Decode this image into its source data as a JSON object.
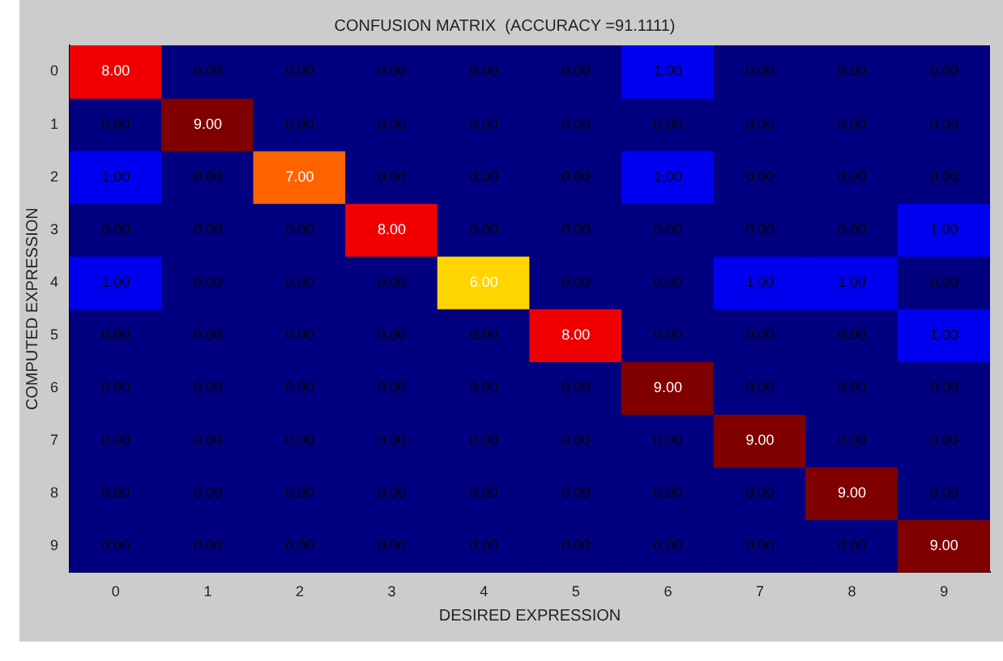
{
  "chart_data": {
    "type": "heatmap",
    "title": "CONFUSION MATRIX  (ACCURACY =91.1111)",
    "xlabel": "DESIRED EXPRESSION",
    "ylabel": "COMPUTED EXPRESSION",
    "categories": [
      "0",
      "1",
      "2",
      "3",
      "4",
      "5",
      "6",
      "7",
      "8",
      "9"
    ],
    "y_categories": [
      "0",
      "1",
      "2",
      "3",
      "4",
      "5",
      "6",
      "7",
      "8",
      "9"
    ],
    "cells": [
      [
        8,
        0,
        0,
        0,
        0,
        0,
        1,
        0,
        0,
        0
      ],
      [
        0,
        9,
        0,
        0,
        0,
        0,
        0,
        0,
        0,
        0
      ],
      [
        1,
        0,
        7,
        0,
        0,
        0,
        1,
        0,
        0,
        0
      ],
      [
        0,
        0,
        0,
        8,
        0,
        0,
        0,
        0,
        0,
        1
      ],
      [
        1,
        0,
        0,
        0,
        6,
        0,
        0,
        1,
        1,
        0
      ],
      [
        0,
        0,
        0,
        0,
        0,
        8,
        0,
        0,
        0,
        1
      ],
      [
        0,
        0,
        0,
        0,
        0,
        0,
        9,
        0,
        0,
        0
      ],
      [
        0,
        0,
        0,
        0,
        0,
        0,
        0,
        9,
        0,
        0
      ],
      [
        0,
        0,
        0,
        0,
        0,
        0,
        0,
        0,
        9,
        0
      ],
      [
        0,
        0,
        0,
        0,
        0,
        0,
        0,
        0,
        0,
        9
      ]
    ],
    "cell_labels": [
      [
        "8.00",
        "0.00",
        "0.00",
        "0.00",
        "0.00",
        "0.00",
        "1.00",
        "0.00",
        "0.00",
        "0.00"
      ],
      [
        "0.00",
        "9.00",
        "0.00",
        "0.00",
        "0.00",
        "0.00",
        "0.00",
        "0.00",
        "0.00",
        "0.00"
      ],
      [
        "1.00",
        "0.00",
        "7.00",
        "0.00",
        "0.00",
        "0.00",
        "1.00",
        "0.00",
        "0.00",
        "0.00"
      ],
      [
        "0.00",
        "0.00",
        "0.00",
        "8.00",
        "0.00",
        "0.00",
        "0.00",
        "0.00",
        "0.00",
        "1.00"
      ],
      [
        "1.00",
        "0.00",
        "0.00",
        "0.00",
        "6.00",
        "0.00",
        "0.00",
        "1.00",
        "1.00",
        "0.00"
      ],
      [
        "0.00",
        "0.00",
        "0.00",
        "0.00",
        "0.00",
        "8.00",
        "0.00",
        "0.00",
        "0.00",
        "1.00"
      ],
      [
        "0.00",
        "0.00",
        "0.00",
        "0.00",
        "0.00",
        "0.00",
        "9.00",
        "0.00",
        "0.00",
        "0.00"
      ],
      [
        "0.00",
        "0.00",
        "0.00",
        "0.00",
        "0.00",
        "0.00",
        "0.00",
        "9.00",
        "0.00",
        "0.00"
      ],
      [
        "0.00",
        "0.00",
        "0.00",
        "0.00",
        "0.00",
        "0.00",
        "0.00",
        "0.00",
        "9.00",
        "0.00"
      ],
      [
        "0.00",
        "0.00",
        "0.00",
        "0.00",
        "0.00",
        "0.00",
        "0.00",
        "0.00",
        "0.00",
        "9.00"
      ]
    ]
  }
}
